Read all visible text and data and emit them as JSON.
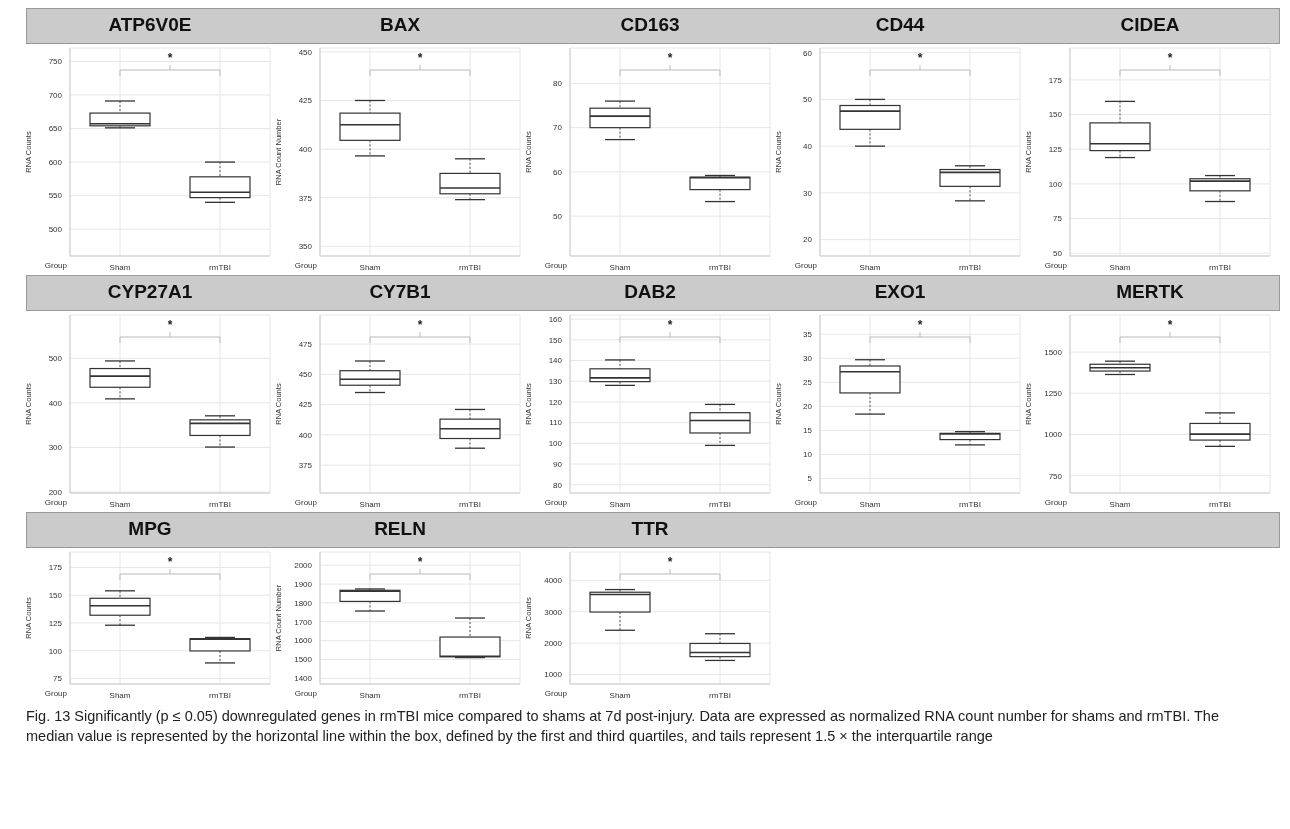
{
  "chart_data": [
    {
      "type": "box",
      "title": "ATP6V0E",
      "categories": [
        "Sham",
        "rmTBI"
      ],
      "xlabel": "Group",
      "ylabel": "RNA Counts",
      "ylim": [
        460,
        770
      ],
      "yticks": [
        500,
        550,
        600,
        650,
        700,
        750
      ],
      "grid": true,
      "annotations": [
        "*"
      ],
      "boxes": [
        {
          "low": 651,
          "q1": 654,
          "median": 657,
          "q3": 673,
          "high": 691
        },
        {
          "low": 540,
          "q1": 547,
          "median": 555,
          "q3": 578,
          "high": 600
        }
      ]
    },
    {
      "type": "box",
      "title": "BAX",
      "categories": [
        "Sham",
        "rmTBI"
      ],
      "xlabel": "Group",
      "ylabel": "RNA Count Number",
      "ylim": [
        345,
        452
      ],
      "yticks": [
        350,
        375,
        400,
        425,
        450
      ],
      "grid": true,
      "annotations": [
        "*"
      ],
      "boxes": [
        {
          "low": 396.5,
          "q1": 404.5,
          "median": 412.5,
          "q3": 418.5,
          "high": 425
        },
        {
          "low": 374,
          "q1": 377,
          "median": 380,
          "q3": 387.5,
          "high": 395
        }
      ]
    },
    {
      "type": "box",
      "title": "CD163",
      "categories": [
        "Sham",
        "rmTBI"
      ],
      "xlabel": "Group",
      "ylabel": "RNA Counts",
      "ylim": [
        41,
        88
      ],
      "yticks": [
        50,
        60,
        70,
        80
      ],
      "grid": true,
      "annotations": [
        "*"
      ],
      "boxes": [
        {
          "low": 67.3,
          "q1": 70,
          "median": 72.6,
          "q3": 74.4,
          "high": 76
        },
        {
          "low": 53.3,
          "q1": 56,
          "median": 58.7,
          "q3": 58.8,
          "high": 59.2
        }
      ]
    },
    {
      "type": "box",
      "title": "CD44",
      "categories": [
        "Sham",
        "rmTBI"
      ],
      "xlabel": "Group",
      "ylabel": "RNA Counts",
      "ylim": [
        16.5,
        61
      ],
      "yticks": [
        20,
        30,
        40,
        50,
        60
      ],
      "grid": true,
      "annotations": [
        "*"
      ],
      "boxes": [
        {
          "low": 40,
          "q1": 43.6,
          "median": 47.5,
          "q3": 48.7,
          "high": 50
        },
        {
          "low": 28.3,
          "q1": 31.4,
          "median": 34.4,
          "q3": 35,
          "high": 35.8
        }
      ]
    },
    {
      "type": "box",
      "title": "CIDEA",
      "categories": [
        "Sham",
        "rmTBI"
      ],
      "xlabel": "Group",
      "ylabel": "RNA Counts",
      "ylim": [
        48,
        198
      ],
      "yticks": [
        50,
        75,
        100,
        125,
        150,
        175
      ],
      "grid": true,
      "annotations": [
        "*"
      ],
      "boxes": [
        {
          "low": 119,
          "q1": 124,
          "median": 129,
          "q3": 144,
          "high": 159.5
        },
        {
          "low": 87.3,
          "q1": 95,
          "median": 102,
          "q3": 103.7,
          "high": 106
        }
      ]
    },
    {
      "type": "box",
      "title": "CYP27A1",
      "categories": [
        "Sham",
        "rmTBI"
      ],
      "xlabel": "Group",
      "ylabel": "RNA Counts",
      "ylim": [
        198,
        597
      ],
      "yticks": [
        200,
        300,
        400,
        500
      ],
      "grid": true,
      "annotations": [
        "*"
      ],
      "boxes": [
        {
          "low": 409,
          "q1": 435,
          "median": 460,
          "q3": 477,
          "high": 494
        },
        {
          "low": 301,
          "q1": 327,
          "median": 354,
          "q3": 362,
          "high": 371
        }
      ]
    },
    {
      "type": "box",
      "title": "CY7B1",
      "categories": [
        "Sham",
        "rmTBI"
      ],
      "xlabel": "Group",
      "ylabel": "RNA Counts",
      "ylim": [
        352,
        499
      ],
      "yticks": [
        375,
        400,
        425,
        450,
        475
      ],
      "grid": true,
      "annotations": [
        "*"
      ],
      "boxes": [
        {
          "low": 435,
          "q1": 441,
          "median": 446,
          "q3": 453,
          "high": 461
        },
        {
          "low": 389,
          "q1": 397,
          "median": 405,
          "q3": 413,
          "high": 421
        }
      ]
    },
    {
      "type": "box",
      "title": "DAB2",
      "categories": [
        "Sham",
        "rmTBI"
      ],
      "xlabel": "Group",
      "ylabel": "RNA Counts",
      "ylim": [
        76,
        162
      ],
      "yticks": [
        80,
        90,
        100,
        110,
        120,
        130,
        140,
        150,
        160
      ],
      "grid": true,
      "annotations": [
        "*"
      ],
      "boxes": [
        {
          "low": 128,
          "q1": 129.8,
          "median": 131.6,
          "q3": 136,
          "high": 140.3
        },
        {
          "low": 99,
          "q1": 105,
          "median": 111,
          "q3": 114.8,
          "high": 118.8
        }
      ]
    },
    {
      "type": "box",
      "title": "EXO1",
      "categories": [
        "Sham",
        "rmTBI"
      ],
      "xlabel": "Group",
      "ylabel": "RNA Counts",
      "ylim": [
        2,
        39
      ],
      "yticks": [
        5,
        10,
        15,
        20,
        25,
        30,
        35
      ],
      "grid": true,
      "annotations": [
        "*"
      ],
      "boxes": [
        {
          "low": 18.4,
          "q1": 22.8,
          "median": 27.2,
          "q3": 28.4,
          "high": 29.7
        },
        {
          "low": 12,
          "q1": 13.1,
          "median": 14.3,
          "q3": 14.4,
          "high": 14.75
        }
      ]
    },
    {
      "type": "box",
      "title": "MERTK",
      "categories": [
        "Sham",
        "rmTBI"
      ],
      "xlabel": "Group",
      "ylabel": "RNA Counts",
      "ylim": [
        645,
        1725
      ],
      "yticks": [
        750,
        1000,
        1250,
        1500
      ],
      "grid": true,
      "annotations": [
        "*"
      ],
      "boxes": [
        {
          "low": 1364,
          "q1": 1385,
          "median": 1405,
          "q3": 1426,
          "high": 1445
        },
        {
          "low": 928,
          "q1": 966,
          "median": 1002,
          "q3": 1067,
          "high": 1131
        }
      ]
    },
    {
      "type": "box",
      "title": "MPG",
      "categories": [
        "Sham",
        "rmTBI"
      ],
      "xlabel": "Group",
      "ylabel": "RNA Counts",
      "ylim": [
        70,
        189
      ],
      "yticks": [
        75,
        100,
        125,
        150,
        175
      ],
      "grid": true,
      "annotations": [
        "*"
      ],
      "boxes": [
        {
          "low": 123,
          "q1": 132,
          "median": 140.5,
          "q3": 147.3,
          "high": 154
        },
        {
          "low": 89,
          "q1": 99.8,
          "median": 110.5,
          "q3": 110.9,
          "high": 112
        }
      ]
    },
    {
      "type": "box",
      "title": "RELN",
      "categories": [
        "Sham",
        "rmTBI"
      ],
      "xlabel": "Group",
      "ylabel": "RNA Count Number",
      "ylim": [
        1370,
        2070
      ],
      "yticks": [
        1400,
        1500,
        1600,
        1700,
        1800,
        1900,
        2000
      ],
      "grid": true,
      "annotations": [
        "*"
      ],
      "boxes": [
        {
          "low": 1757,
          "q1": 1808,
          "median": 1862,
          "q3": 1867,
          "high": 1874
        },
        {
          "low": 1510,
          "q1": 1514,
          "median": 1517,
          "q3": 1619,
          "high": 1720
        }
      ]
    },
    {
      "type": "box",
      "title": "TTR",
      "categories": [
        "Sham",
        "rmTBI"
      ],
      "xlabel": "Group",
      "ylabel": "RNA Counts",
      "ylim": [
        700,
        4900
      ],
      "yticks": [
        1000,
        2000,
        3000,
        4000
      ],
      "grid": true,
      "annotations": [
        "*",
        "Fig. 13 Significantly (p ≤ 0.05) downregulated genes in rmTBI mice compared to shams at 7d post-injury. Data are expressed as normalized RNA count number for shams and rmTBI. The median value is represented by the horizontal line within the box, defined by the first and third quartiles, and tails represent 1.5 × the interquartile range"
      ],
      "boxes": [
        {
          "low": 2410,
          "q1": 2990,
          "median": 3550,
          "q3": 3620,
          "high": 3705
        },
        {
          "low": 1450,
          "q1": 1570,
          "median": 1700,
          "q3": 1990,
          "high": 2300
        }
      ]
    }
  ]
}
